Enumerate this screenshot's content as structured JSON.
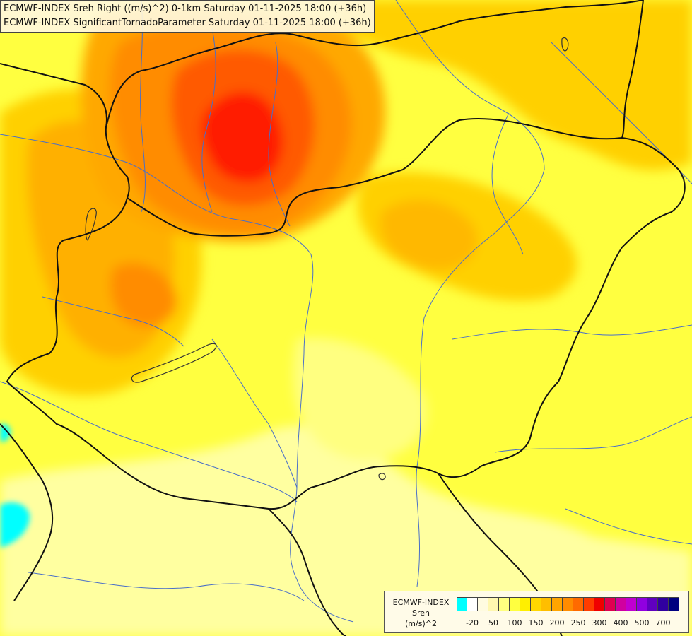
{
  "title": {
    "line1": "ECMWF-INDEX Sreh Right ((m/s)^2) 0-1km Saturday 01-11-2025 18:00 (+36h)",
    "line2": "ECMWF-INDEX SignificantTornadoParameter Saturday 01-11-2025 18:00 (+36h)"
  },
  "legend": {
    "source": "ECMWF-INDEX",
    "variable": "Sreh",
    "unit": "(m/s)^2",
    "colors": [
      "#00ffff",
      "#ffffff",
      "#fffbe0",
      "#fff7b0",
      "#ffff80",
      "#ffff40",
      "#ffef00",
      "#ffd700",
      "#ffbe00",
      "#ffa500",
      "#ff8c00",
      "#ff6a00",
      "#ff3c00",
      "#f00000",
      "#e00050",
      "#d000a0",
      "#c000d0",
      "#9000e0",
      "#6000c0",
      "#3000a0",
      "#000080"
    ],
    "ticks": [
      "-20",
      "50",
      "100",
      "150",
      "200",
      "250",
      "300",
      "400",
      "500",
      "700"
    ]
  },
  "palette": {
    "yellow_light": "#ffffa0",
    "yellow": "#ffff33",
    "gold": "#ffd400",
    "orange_light": "#ffb400",
    "orange": "#ff8c00",
    "orange_dark": "#ff5a00",
    "red": "#ff1a00",
    "cyan": "#00ffff"
  }
}
